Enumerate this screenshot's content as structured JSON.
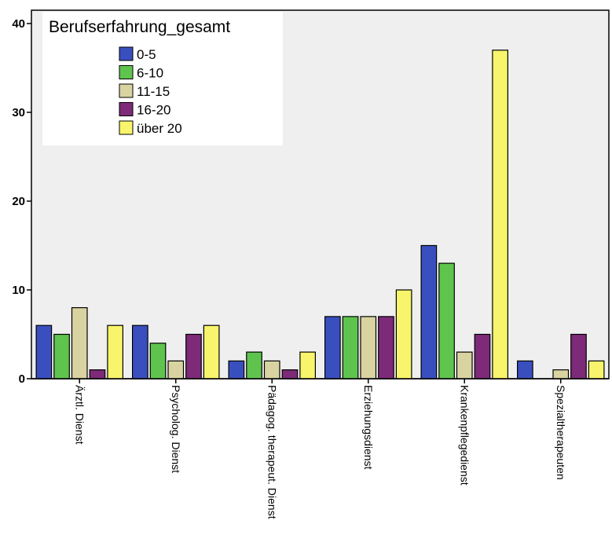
{
  "chart_data": {
    "type": "bar",
    "categories": [
      "Ärztl. Dienst",
      "Psycholog. Dienst",
      "Pädagog. therapeut. Dienst",
      "Erziehungsdienst",
      "Krankenpflegedienst",
      "Spezialtherapeuten"
    ],
    "series": [
      {
        "name": "0-5",
        "color": "#3a4fbe",
        "values": [
          6,
          6,
          2,
          7,
          15,
          2
        ]
      },
      {
        "name": "6-10",
        "color": "#5fc44e",
        "values": [
          5,
          4,
          3,
          7,
          13,
          0
        ]
      },
      {
        "name": "11-15",
        "color": "#d9d3a2",
        "values": [
          8,
          2,
          2,
          7,
          3,
          1
        ]
      },
      {
        "name": "16-20",
        "color": "#7d2a78",
        "values": [
          1,
          5,
          1,
          7,
          5,
          5
        ]
      },
      {
        "name": "über 20",
        "color": "#f8f46c",
        "values": [
          6,
          6,
          3,
          10,
          37,
          2
        ]
      }
    ],
    "yticks": [
      0,
      10,
      20,
      30,
      40
    ],
    "ylim": [
      0,
      41.5
    ],
    "legend": {
      "title": "Berufserfahrung_gesamt",
      "position": "top-left"
    },
    "plot_background": "#efefef",
    "grid": false
  }
}
